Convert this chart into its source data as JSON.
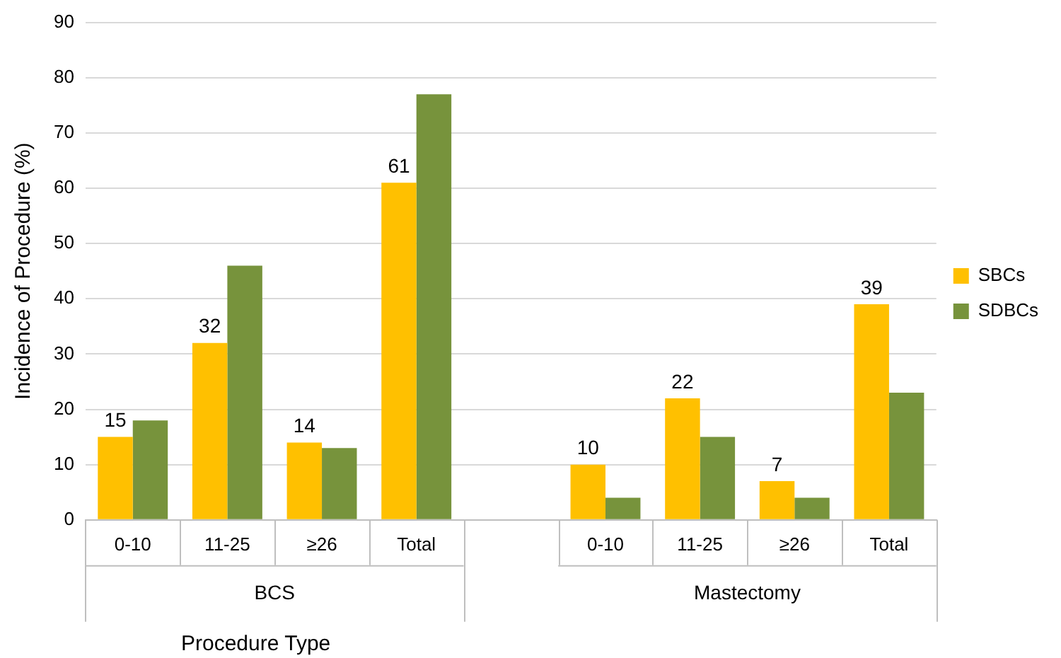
{
  "chart_data": {
    "type": "bar",
    "categories": [
      "0-10",
      "11-25",
      "≥26",
      "Total",
      null,
      "0-10",
      "11-25",
      "≥26",
      "Total"
    ],
    "series": [
      {
        "name": "SBCs",
        "color": "#ffc000",
        "values": [
          15,
          32,
          14,
          61,
          null,
          10,
          22,
          7,
          39
        ],
        "value_labels": [
          "15",
          "32",
          "14",
          "61",
          null,
          "10",
          "22",
          "7",
          "39"
        ]
      },
      {
        "name": "SDBCs",
        "color": "#77933c",
        "values": [
          18,
          46,
          13,
          77,
          null,
          4,
          15,
          4,
          23
        ]
      }
    ],
    "xlabel": "Procedure Type",
    "ylabel": "Incidence of Procedure (%)",
    "annotations": [
      "BCS",
      "Mastectomy"
    ],
    "ylim": [
      0,
      90
    ],
    "yticks": [
      0,
      10,
      20,
      30,
      40,
      50,
      60,
      70,
      80,
      90
    ],
    "grid": "y",
    "legend": "right"
  }
}
